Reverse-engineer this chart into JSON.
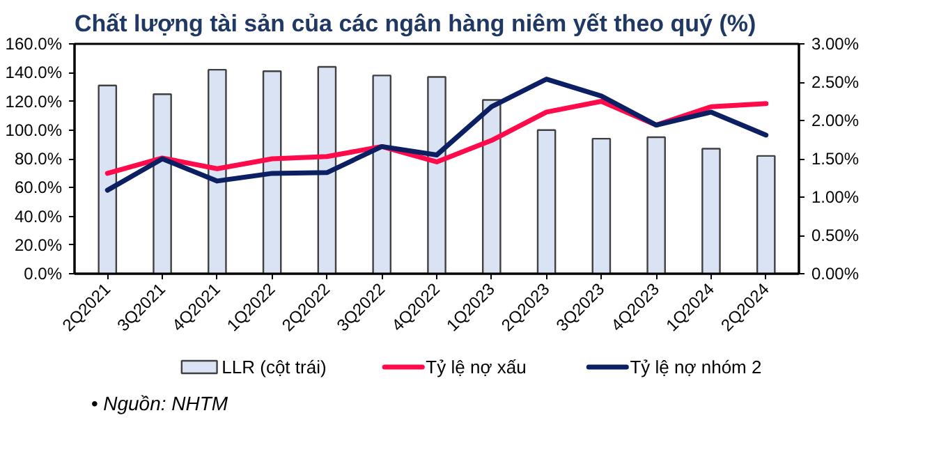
{
  "chart_data": {
    "type": "bar",
    "title": "Chất lượng tài sản của các ngân hàng niêm yết theo quý (%)",
    "categories": [
      "2Q2021",
      "3Q2021",
      "4Q2021",
      "1Q2022",
      "2Q2022",
      "3Q2022",
      "4Q2022",
      "1Q2023",
      "2Q2023",
      "3Q2023",
      "4Q2023",
      "1Q2024",
      "2Q2024"
    ],
    "series": [
      {
        "name": "LLR (cột trái)",
        "color": "#dae3f3",
        "values": [
          131,
          125,
          142,
          141,
          144,
          138,
          137,
          121,
          100,
          94,
          95,
          87,
          82
        ]
      },
      {
        "name": "Tỷ lệ nợ xấu",
        "type": "line",
        "axis": "y2",
        "color": "#ff0a4b",
        "values": [
          1.31,
          1.51,
          1.37,
          1.5,
          1.53,
          1.66,
          1.46,
          1.74,
          2.11,
          2.25,
          1.94,
          2.18,
          2.22
        ]
      },
      {
        "name": "Tỷ lệ nợ nhóm 2",
        "type": "line",
        "axis": "y2",
        "color": "#0d1f63",
        "values": [
          1.09,
          1.5,
          1.21,
          1.31,
          1.32,
          1.66,
          1.55,
          2.18,
          2.54,
          2.32,
          1.94,
          2.11,
          1.81
        ]
      }
    ],
    "ylim": [
      0,
      160
    ],
    "yticks": [
      {
        "value": 0,
        "label": "0.0%"
      },
      {
        "value": 20,
        "label": "20.0%"
      },
      {
        "value": 40,
        "label": "40.0%"
      },
      {
        "value": 60,
        "label": "60.0%"
      },
      {
        "value": 80,
        "label": "80.0%"
      },
      {
        "value": 100,
        "label": "100.0%"
      },
      {
        "value": 120,
        "label": "120.0%"
      },
      {
        "value": 140,
        "label": "140.0%"
      },
      {
        "value": 160,
        "label": "160.0%"
      }
    ],
    "y2lim": [
      0,
      3
    ],
    "y2ticks": [
      {
        "value": 0,
        "label": "0.00%"
      },
      {
        "value": 0.5,
        "label": "0.50%"
      },
      {
        "value": 1,
        "label": "1.00%"
      },
      {
        "value": 1.5,
        "label": "1.50%"
      },
      {
        "value": 2,
        "label": "2.00%"
      },
      {
        "value": 2.5,
        "label": "2.50%"
      },
      {
        "value": 3,
        "label": "3.00%"
      }
    ],
    "annotations": [
      "•    Nguồn: NHTM"
    ],
    "legend": "bottom",
    "grid": false
  }
}
